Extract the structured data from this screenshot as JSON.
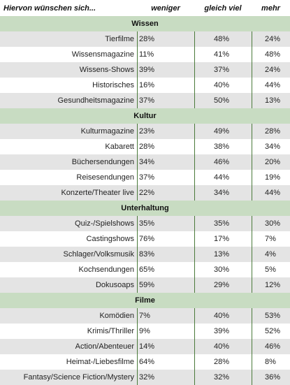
{
  "header": {
    "label": "Hiervon wünschen sich...",
    "columns": [
      "weniger",
      "gleich viel",
      "mehr"
    ]
  },
  "sections": [
    {
      "title": "Wissen",
      "rows": [
        {
          "label": "Tierfilme",
          "values": [
            "28%",
            "48%",
            "24%"
          ]
        },
        {
          "label": "Wissensmagazine",
          "values": [
            "11%",
            "41%",
            "48%"
          ]
        },
        {
          "label": "Wissens-Shows",
          "values": [
            "39%",
            "37%",
            "24%"
          ]
        },
        {
          "label": "Historisches",
          "values": [
            "16%",
            "40%",
            "44%"
          ]
        },
        {
          "label": "Gesundheitsmagazine",
          "values": [
            "37%",
            "50%",
            "13%"
          ]
        }
      ]
    },
    {
      "title": "Kultur",
      "rows": [
        {
          "label": "Kulturmagazine",
          "values": [
            "23%",
            "49%",
            "28%"
          ]
        },
        {
          "label": "Kabarett",
          "values": [
            "28%",
            "38%",
            "34%"
          ]
        },
        {
          "label": "Büchersendungen",
          "values": [
            "34%",
            "46%",
            "20%"
          ]
        },
        {
          "label": "Reisesendungen",
          "values": [
            "37%",
            "44%",
            "19%"
          ]
        },
        {
          "label": "Konzerte/Theater live",
          "values": [
            "22%",
            "34%",
            "44%"
          ]
        }
      ]
    },
    {
      "title": "Unterhaltung",
      "rows": [
        {
          "label": "Quiz-/Spielshows",
          "values": [
            "35%",
            "35%",
            "30%"
          ]
        },
        {
          "label": "Castingshows",
          "values": [
            "76%",
            "17%",
            "7%"
          ]
        },
        {
          "label": "Schlager/Volksmusik",
          "values": [
            "83%",
            "13%",
            "4%"
          ]
        },
        {
          "label": "Kochsendungen",
          "values": [
            "65%",
            "30%",
            "5%"
          ]
        },
        {
          "label": "Dokusoaps",
          "values": [
            "59%",
            "29%",
            "12%"
          ]
        }
      ]
    },
    {
      "title": "Filme",
      "rows": [
        {
          "label": "Komödien",
          "values": [
            "7%",
            "40%",
            "53%"
          ]
        },
        {
          "label": "Krimis/Thriller",
          "values": [
            "9%",
            "39%",
            "52%"
          ]
        },
        {
          "label": "Action/Abenteuer",
          "values": [
            "14%",
            "40%",
            "46%"
          ]
        },
        {
          "label": "Heimat-/Liebesfilme",
          "values": [
            "64%",
            "28%",
            "8%"
          ]
        },
        {
          "label": "Fantasy/Science Fiction/Mystery",
          "values": [
            "32%",
            "32%",
            "36%"
          ]
        }
      ]
    }
  ],
  "colors": {
    "section_bg": "#c8dcc2",
    "row_alt_bg": "#e4e4e4",
    "divider": "#4a7a3a"
  }
}
